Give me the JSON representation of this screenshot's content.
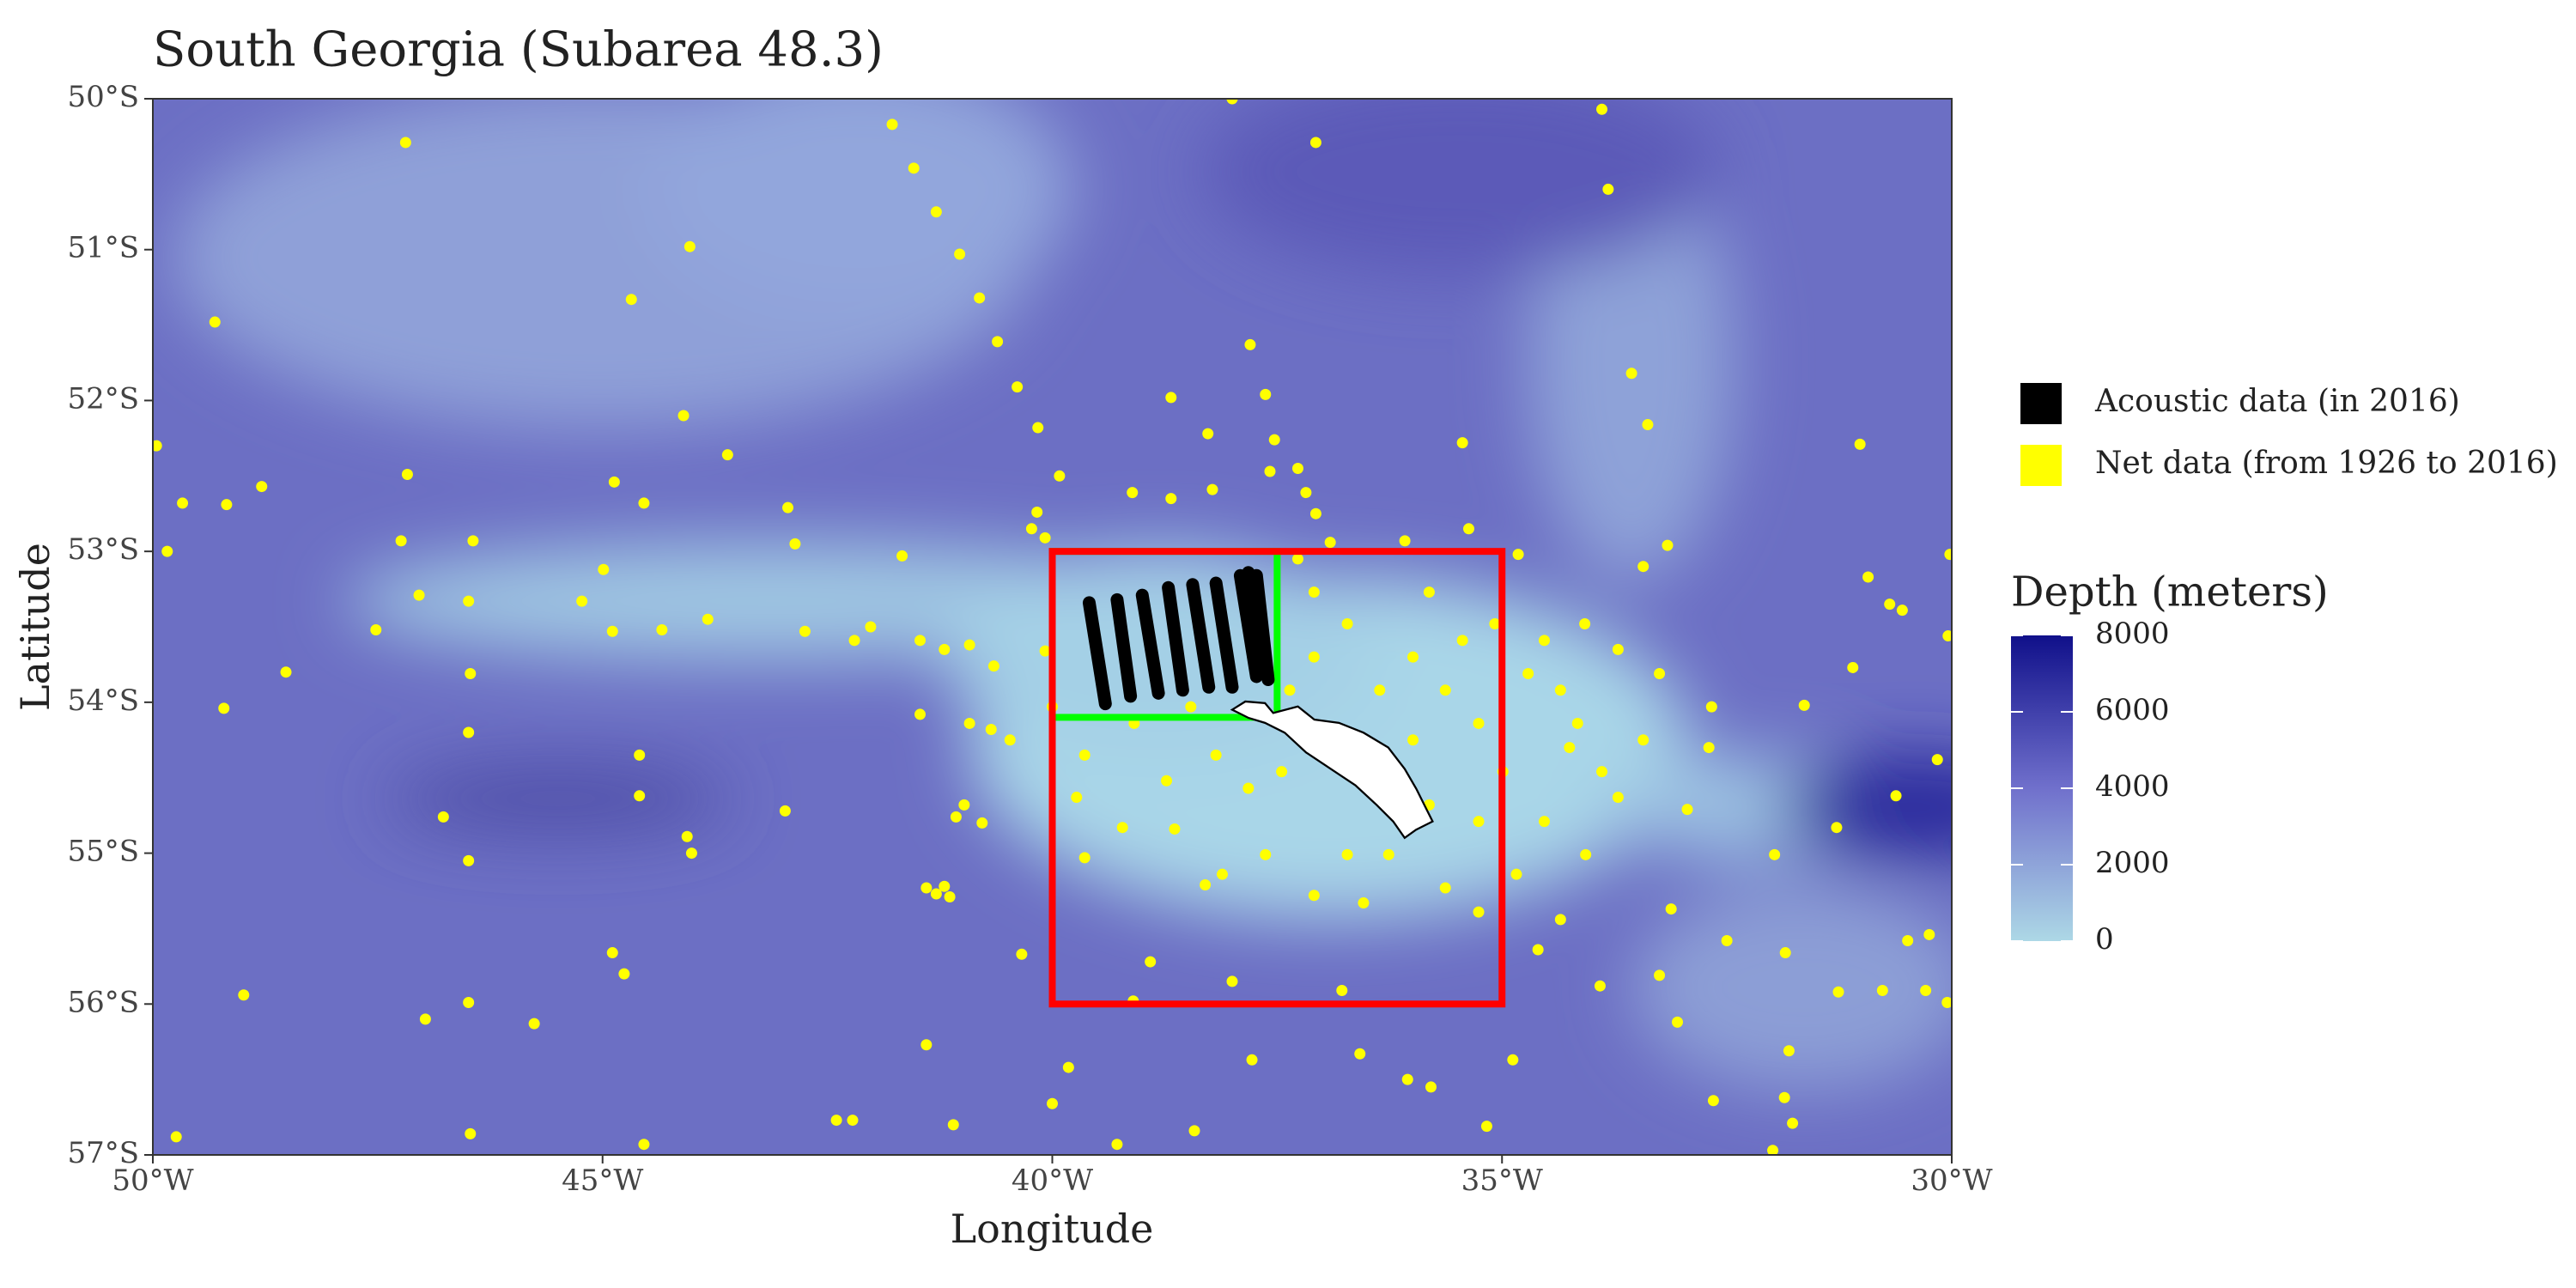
{
  "chart_data": {
    "type": "map",
    "title": "South Georgia (Subarea 48.3)",
    "xlabel": "Longitude",
    "ylabel": "Latitude",
    "xlim": [
      -50,
      -30
    ],
    "ylim": [
      -57,
      -50
    ],
    "xticks": [
      {
        "value": -50,
        "label": "50°W"
      },
      {
        "value": -45,
        "label": "45°W"
      },
      {
        "value": -40,
        "label": "40°W"
      },
      {
        "value": -35,
        "label": "35°W"
      },
      {
        "value": -30,
        "label": "30°W"
      }
    ],
    "yticks": [
      {
        "value": -57,
        "label": "57°S"
      },
      {
        "value": -56,
        "label": "56°S"
      },
      {
        "value": -55,
        "label": "55°S"
      },
      {
        "value": -54,
        "label": "54°S"
      },
      {
        "value": -53,
        "label": "53°S"
      },
      {
        "value": -52,
        "label": "52°S"
      },
      {
        "value": -51,
        "label": "51°S"
      },
      {
        "value": -50,
        "label": "50°S"
      }
    ],
    "series": [
      {
        "name": "Acoustic data (in 2016)",
        "color": "#000000",
        "segments": [
          [
            -39.59,
            -53.34,
            -39.41,
            -54.01
          ],
          [
            -39.28,
            -53.32,
            -39.13,
            -53.96
          ],
          [
            -39.0,
            -53.29,
            -38.82,
            -53.94
          ],
          [
            -38.71,
            -53.24,
            -38.55,
            -53.92
          ],
          [
            -38.44,
            -53.22,
            -38.26,
            -53.9
          ],
          [
            -38.18,
            -53.21,
            -38.0,
            -53.9
          ],
          [
            -37.91,
            -53.16,
            -37.73,
            -53.83
          ],
          [
            -37.82,
            -53.14,
            -37.63,
            -53.81
          ],
          [
            -37.73,
            -53.16,
            -37.6,
            -53.85
          ]
        ]
      },
      {
        "name": "Net data (from 1926 to 2016)",
        "color": "#ffff00",
        "x": [
          -47.19,
          -38.0,
          -41.78,
          -37.07,
          -33.89,
          -33.82,
          -41.54,
          -41.29,
          -41.03,
          -44.03,
          -40.81,
          -44.68,
          -49.31,
          -40.61,
          -40.39,
          -33.56,
          -33.38,
          -31.02,
          -40.16,
          -44.1,
          -49.96,
          -47.17,
          -48.79,
          -44.87,
          -44.54,
          -43.61,
          -42.94,
          -42.86,
          -49.18,
          -49.67,
          -49.84,
          -47.24,
          -46.44,
          -41.67,
          -44.99,
          -47.04,
          -46.49,
          -47.52,
          -44.89,
          -45.23,
          -44.34,
          -43.83,
          -42.75,
          -48.52,
          -46.47,
          -49.21,
          -46.49,
          -44.59,
          -44.59,
          -46.77,
          -46.49,
          -44.06,
          -44.01,
          -42.97,
          -44.89,
          -44.76,
          -48.99,
          -46.97,
          -46.49,
          -45.76,
          -41.4,
          -49.74,
          -46.47,
          -44.54,
          -42.4,
          -42.22,
          -41.1,
          -41.4,
          -41.29,
          -41.2,
          -41.14,
          -40.98,
          -40.78,
          -41.07,
          -40.68,
          -40.08,
          -40.17,
          -40.08,
          -40.23,
          -39.92,
          -39.11,
          -38.68,
          -38.68,
          -38.22,
          -38.27,
          -37.8,
          -37.63,
          -37.53,
          -37.58,
          -37.27,
          -37.18,
          -37.07,
          -36.08,
          -35.44,
          -35.37,
          -34.82,
          -33.16,
          -33.43,
          -30.02,
          -30.93,
          -30.69,
          -30.55,
          -30.04,
          -31.1,
          -31.64,
          -32.67,
          -32.7,
          -30.16,
          -30.62,
          -31.28,
          -31.97,
          -32.94,
          -33.12,
          -32.5,
          -31.85,
          -31.26,
          -30.77,
          -30.29,
          -30.05,
          -30.49,
          -30.25,
          -33.05,
          -31.81,
          -31.86,
          -31.77,
          -31.99,
          -32.65,
          -33.91,
          -33.25,
          -35.17,
          -34.88,
          -36.58,
          -36.05,
          -35.79,
          -37.78,
          -38.42,
          -39.28,
          -40.0,
          -39.82,
          -39.1,
          -38.91,
          -38.0,
          -36.78,
          -40.34,
          -39.64,
          -39.22,
          -38.73,
          -38.11,
          -37.63,
          -38.3,
          -37.09,
          -36.72,
          -36.26,
          -35.63,
          -35.26,
          -34.84,
          -34.35,
          -34.6,
          -34.07,
          -33.89,
          -34.25,
          -33.71,
          -34.71,
          -35.08,
          -34.53,
          -34.08,
          -33.71,
          -35.81,
          -35.44,
          -35.99,
          -35.63,
          -35.26,
          -35.99,
          -36.36,
          -36.72,
          -37.09,
          -37.27,
          -36.91,
          -37.09,
          -37.36,
          -38.18,
          -37.82,
          -37.45,
          -39.09,
          -39.64,
          -40.0,
          -39.73,
          -40.47,
          -40.92,
          -41.47,
          -41.47,
          -41.2,
          -40.92,
          -40.65,
          -42.2,
          -42.02,
          -38.46,
          -38.64,
          -36.54,
          -36.17,
          -35.81,
          -35.26,
          -34.53,
          -34.99,
          -34.35,
          -33.25,
          -33.43,
          -34.16
        ],
        "y": [
          -50.29,
          -50.0,
          -50.17,
          -50.29,
          -50.07,
          -50.6,
          -50.46,
          -50.75,
          -51.03,
          -50.98,
          -51.32,
          -51.33,
          -51.48,
          -51.61,
          -51.91,
          -51.82,
          -52.16,
          -52.29,
          -52.18,
          -52.1,
          -52.3,
          -52.49,
          -52.57,
          -52.54,
          -52.68,
          -52.36,
          -52.71,
          -52.95,
          -52.69,
          -52.68,
          -53.0,
          -52.93,
          -52.93,
          -53.03,
          -53.12,
          -53.29,
          -53.33,
          -53.52,
          -53.53,
          -53.33,
          -53.52,
          -53.45,
          -53.53,
          -53.8,
          -53.81,
          -54.04,
          -54.2,
          -54.35,
          -54.62,
          -54.76,
          -55.05,
          -54.89,
          -55.0,
          -54.72,
          -55.66,
          -55.8,
          -55.94,
          -56.1,
          -55.99,
          -56.13,
          -56.27,
          -56.88,
          -56.86,
          -56.93,
          -56.77,
          -56.77,
          -56.8,
          -55.23,
          -55.27,
          -55.22,
          -55.29,
          -54.68,
          -54.8,
          -54.76,
          -54.18,
          -53.66,
          -52.74,
          -52.91,
          -52.85,
          -52.5,
          -52.61,
          -52.65,
          -51.98,
          -52.59,
          -52.22,
          -51.63,
          -51.96,
          -52.26,
          -52.47,
          -52.45,
          -52.61,
          -52.75,
          -52.93,
          -52.28,
          -52.85,
          -53.02,
          -52.96,
          -53.1,
          -53.02,
          -53.17,
          -53.35,
          -53.39,
          -53.56,
          -53.77,
          -54.02,
          -54.03,
          -54.3,
          -54.38,
          -54.62,
          -54.83,
          -55.01,
          -54.71,
          -55.37,
          -55.58,
          -55.66,
          -55.92,
          -55.91,
          -55.91,
          -55.99,
          -55.58,
          -55.54,
          -56.12,
          -56.31,
          -56.62,
          -56.79,
          -56.97,
          -56.64,
          -55.88,
          -55.81,
          -56.81,
          -56.37,
          -56.33,
          -56.5,
          -56.55,
          -56.37,
          -56.84,
          -56.93,
          -56.66,
          -56.42,
          -55.98,
          -55.72,
          -55.85,
          -55.91,
          -55.67,
          -55.03,
          -54.83,
          -54.52,
          -55.14,
          -55.01,
          -55.21,
          -55.28,
          -55.01,
          -55.01,
          -55.23,
          -55.39,
          -55.14,
          -55.44,
          -55.64,
          -55.01,
          -54.46,
          -54.3,
          -54.63,
          -53.81,
          -53.48,
          -53.59,
          -53.48,
          -53.65,
          -53.27,
          -53.59,
          -53.7,
          -53.92,
          -54.14,
          -54.25,
          -53.92,
          -53.48,
          -53.27,
          -53.05,
          -52.94,
          -53.7,
          -53.92,
          -54.35,
          -54.57,
          -54.46,
          -54.14,
          -54.35,
          -54.03,
          -54.63,
          -54.25,
          -54.14,
          -54.08,
          -53.59,
          -53.65,
          -53.62,
          -53.76,
          -53.59,
          -53.5,
          -54.03,
          -54.84,
          -55.33,
          -54.46,
          -54.68,
          -54.79,
          -54.79,
          -54.46,
          -53.92,
          -53.81,
          -54.25,
          -54.14
        ]
      }
    ],
    "boxes": [
      {
        "color": "#00ff00",
        "xlim": [
          -40,
          -37.5
        ],
        "ylim": [
          -54.1,
          -53
        ]
      },
      {
        "color": "#ff0000",
        "xlim": [
          -40,
          -35
        ],
        "ylim": [
          -56,
          -53
        ]
      }
    ],
    "colorbar": {
      "title": "Depth (meters)",
      "lim": [
        0,
        8000
      ],
      "ticks": [
        0,
        2000,
        4000,
        6000,
        8000
      ],
      "colors": [
        "#add8e6",
        "#7070cc",
        "#10108a"
      ]
    }
  }
}
